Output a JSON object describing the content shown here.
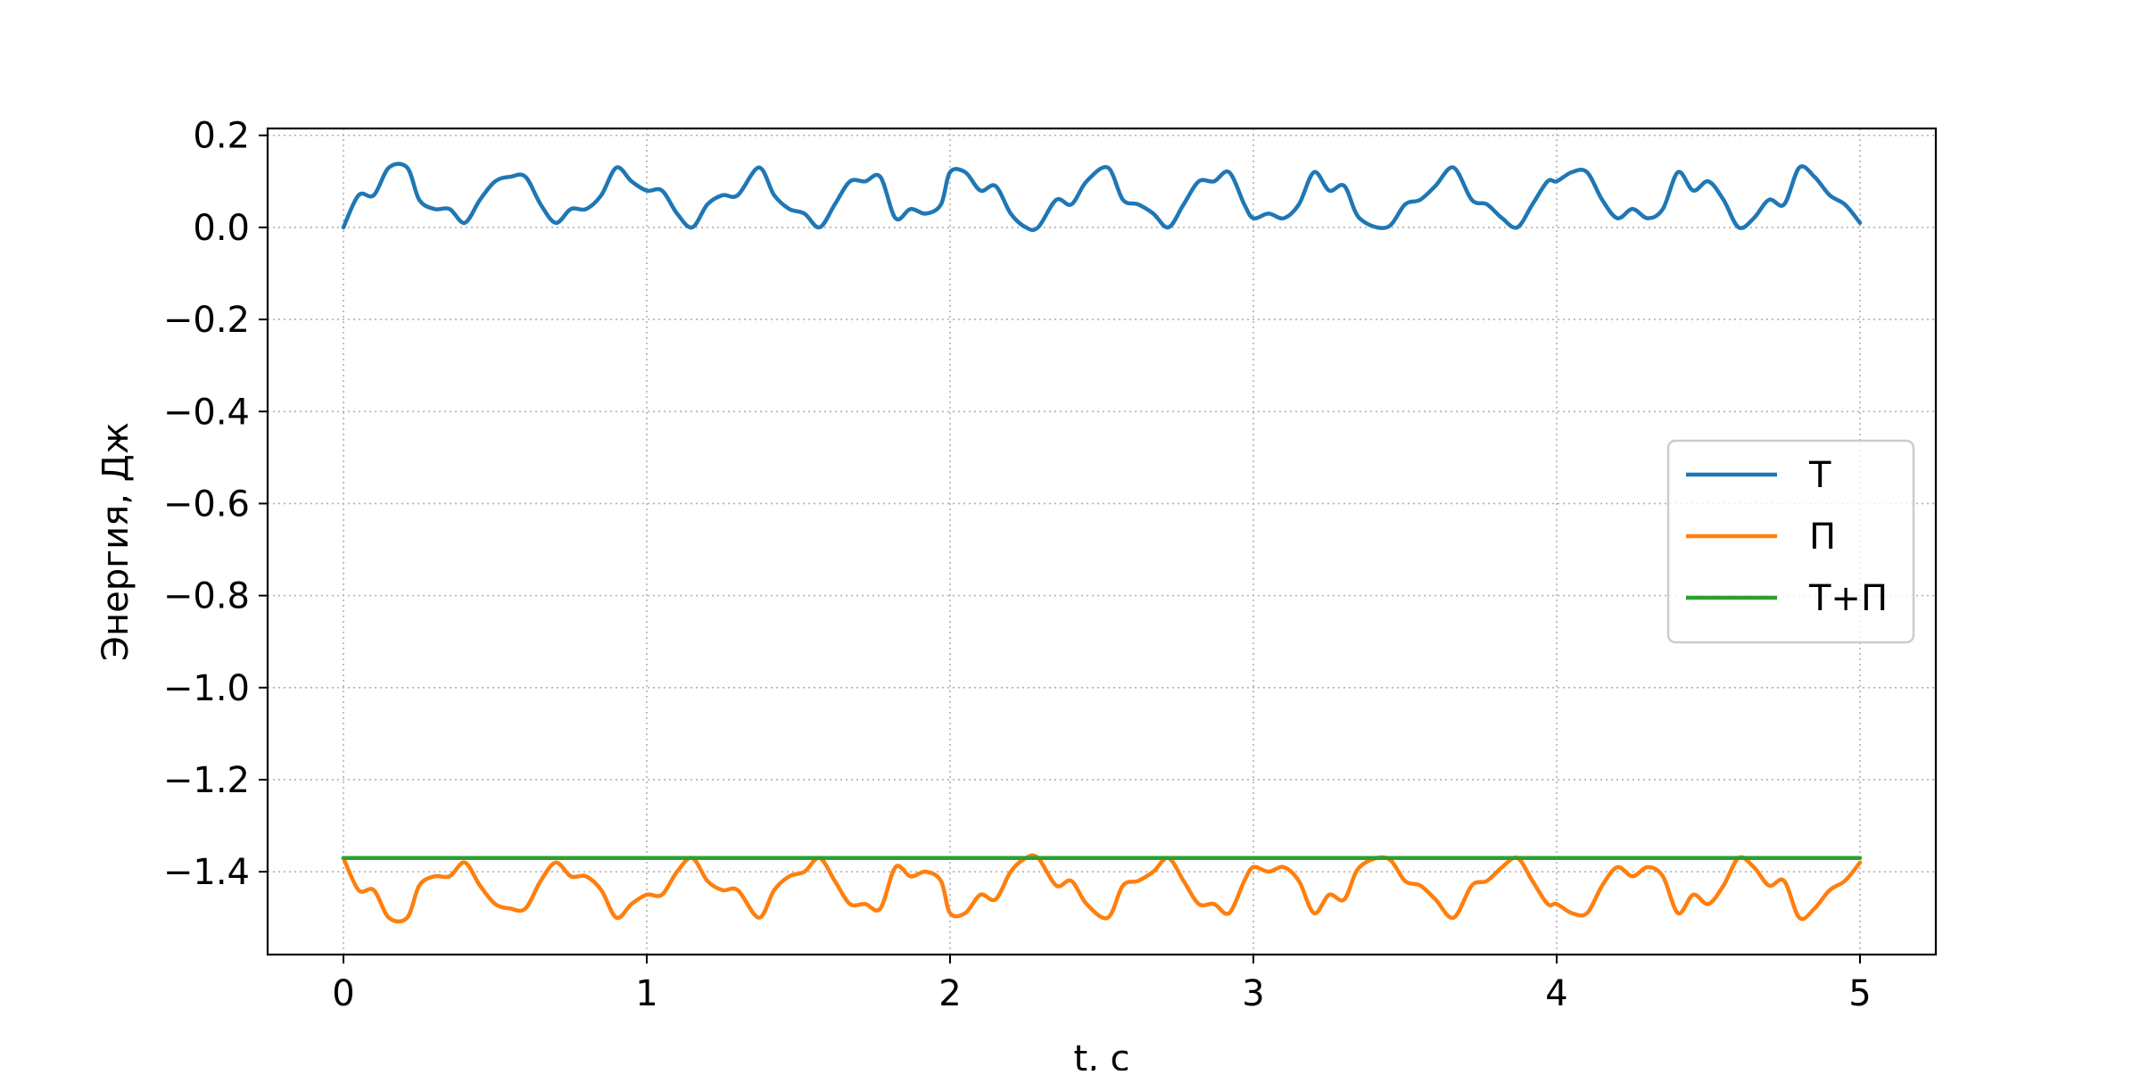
{
  "chart_data": {
    "type": "line",
    "title": "",
    "xlabel": "t, c",
    "ylabel": "Энергия, Дж",
    "xlim": [
      -0.25,
      5.25
    ],
    "ylim": [
      -1.58,
      0.215
    ],
    "xticks": [
      0,
      1,
      2,
      3,
      4,
      5
    ],
    "xtick_labels": [
      "0",
      "1",
      "2",
      "3",
      "4",
      "5"
    ],
    "yticks": [
      0.2,
      0.0,
      -0.2,
      -0.4,
      -0.6,
      -0.8,
      -1.0,
      -1.2,
      -1.4
    ],
    "ytick_labels": [
      "0.2",
      "0.0",
      "−0.2",
      "−0.4",
      "−0.6",
      "−0.8",
      "−1.0",
      "−1.2",
      "−1.4"
    ],
    "grid": true,
    "legend_position": "center-right",
    "series": [
      {
        "name": "T",
        "color": "#1f77b4",
        "x": [
          0.0,
          0.05,
          0.1,
          0.15,
          0.21,
          0.25,
          0.3,
          0.35,
          0.4,
          0.45,
          0.5,
          0.55,
          0.6,
          0.65,
          0.7,
          0.75,
          0.8,
          0.85,
          0.9,
          0.95,
          1.0,
          1.05,
          1.1,
          1.15,
          1.2,
          1.25,
          1.3,
          1.37,
          1.42,
          1.47,
          1.52,
          1.57,
          1.62,
          1.67,
          1.72,
          1.77,
          1.82,
          1.87,
          1.92,
          1.97,
          2.0,
          2.05,
          2.1,
          2.15,
          2.2,
          2.25,
          2.29,
          2.35,
          2.4,
          2.45,
          2.52,
          2.57,
          2.62,
          2.67,
          2.72,
          2.77,
          2.82,
          2.87,
          2.92,
          2.97,
          3.0,
          3.05,
          3.1,
          3.15,
          3.2,
          3.25,
          3.3,
          3.35,
          3.44,
          3.5,
          3.55,
          3.6,
          3.66,
          3.72,
          3.77,
          3.82,
          3.87,
          3.92,
          3.97,
          4.0,
          4.05,
          4.1,
          4.15,
          4.2,
          4.25,
          4.3,
          4.35,
          4.4,
          4.45,
          4.5,
          4.55,
          4.6,
          4.65,
          4.7,
          4.75,
          4.8,
          4.85,
          4.9,
          4.95,
          5.0
        ],
        "y": [
          0.0,
          0.07,
          0.07,
          0.13,
          0.13,
          0.06,
          0.04,
          0.04,
          0.01,
          0.06,
          0.1,
          0.11,
          0.11,
          0.05,
          0.01,
          0.04,
          0.04,
          0.07,
          0.13,
          0.1,
          0.08,
          0.08,
          0.03,
          0.0,
          0.05,
          0.07,
          0.07,
          0.13,
          0.07,
          0.04,
          0.03,
          0.0,
          0.05,
          0.1,
          0.1,
          0.11,
          0.02,
          0.04,
          0.03,
          0.05,
          0.12,
          0.12,
          0.08,
          0.09,
          0.03,
          0.0,
          0.0,
          0.06,
          0.05,
          0.1,
          0.13,
          0.06,
          0.05,
          0.03,
          0.0,
          0.05,
          0.1,
          0.1,
          0.12,
          0.05,
          0.02,
          0.03,
          0.02,
          0.05,
          0.12,
          0.08,
          0.09,
          0.02,
          0.0,
          0.05,
          0.06,
          0.09,
          0.13,
          0.06,
          0.05,
          0.02,
          0.0,
          0.05,
          0.1,
          0.1,
          0.12,
          0.12,
          0.06,
          0.02,
          0.04,
          0.02,
          0.04,
          0.12,
          0.08,
          0.1,
          0.06,
          0.0,
          0.02,
          0.06,
          0.05,
          0.13,
          0.11,
          0.07,
          0.05,
          0.01
        ]
      },
      {
        "name": "П",
        "color": "#ff7f0e",
        "x": [
          0.0,
          0.05,
          0.1,
          0.15,
          0.21,
          0.25,
          0.3,
          0.35,
          0.4,
          0.45,
          0.5,
          0.55,
          0.6,
          0.65,
          0.7,
          0.75,
          0.8,
          0.85,
          0.9,
          0.95,
          1.0,
          1.05,
          1.1,
          1.15,
          1.2,
          1.25,
          1.3,
          1.37,
          1.42,
          1.47,
          1.52,
          1.57,
          1.62,
          1.67,
          1.72,
          1.77,
          1.82,
          1.87,
          1.92,
          1.97,
          2.0,
          2.05,
          2.1,
          2.15,
          2.2,
          2.25,
          2.29,
          2.35,
          2.4,
          2.45,
          2.52,
          2.57,
          2.62,
          2.67,
          2.72,
          2.77,
          2.82,
          2.87,
          2.92,
          2.97,
          3.0,
          3.05,
          3.1,
          3.15,
          3.2,
          3.25,
          3.3,
          3.35,
          3.44,
          3.5,
          3.55,
          3.6,
          3.66,
          3.72,
          3.77,
          3.82,
          3.87,
          3.92,
          3.97,
          4.0,
          4.05,
          4.1,
          4.15,
          4.2,
          4.25,
          4.3,
          4.35,
          4.4,
          4.45,
          4.5,
          4.55,
          4.6,
          4.65,
          4.7,
          4.75,
          4.8,
          4.85,
          4.9,
          4.95,
          5.0
        ],
        "y": [
          -1.37,
          -1.44,
          -1.44,
          -1.5,
          -1.5,
          -1.43,
          -1.41,
          -1.41,
          -1.38,
          -1.43,
          -1.47,
          -1.48,
          -1.48,
          -1.42,
          -1.38,
          -1.41,
          -1.41,
          -1.44,
          -1.5,
          -1.47,
          -1.45,
          -1.45,
          -1.4,
          -1.37,
          -1.42,
          -1.44,
          -1.44,
          -1.5,
          -1.44,
          -1.41,
          -1.4,
          -1.37,
          -1.42,
          -1.47,
          -1.47,
          -1.48,
          -1.39,
          -1.41,
          -1.4,
          -1.42,
          -1.49,
          -1.49,
          -1.45,
          -1.46,
          -1.4,
          -1.37,
          -1.37,
          -1.43,
          -1.42,
          -1.47,
          -1.5,
          -1.43,
          -1.42,
          -1.4,
          -1.37,
          -1.42,
          -1.47,
          -1.47,
          -1.49,
          -1.42,
          -1.39,
          -1.4,
          -1.39,
          -1.42,
          -1.49,
          -1.45,
          -1.46,
          -1.39,
          -1.37,
          -1.42,
          -1.43,
          -1.46,
          -1.5,
          -1.43,
          -1.42,
          -1.39,
          -1.37,
          -1.42,
          -1.47,
          -1.47,
          -1.49,
          -1.49,
          -1.43,
          -1.39,
          -1.41,
          -1.39,
          -1.41,
          -1.49,
          -1.45,
          -1.47,
          -1.43,
          -1.37,
          -1.39,
          -1.43,
          -1.42,
          -1.5,
          -1.48,
          -1.44,
          -1.42,
          -1.38
        ]
      },
      {
        "name": "T+П",
        "color": "#2ca02c",
        "x": [
          0.0,
          5.0
        ],
        "y": [
          -1.37,
          -1.37
        ]
      }
    ]
  }
}
